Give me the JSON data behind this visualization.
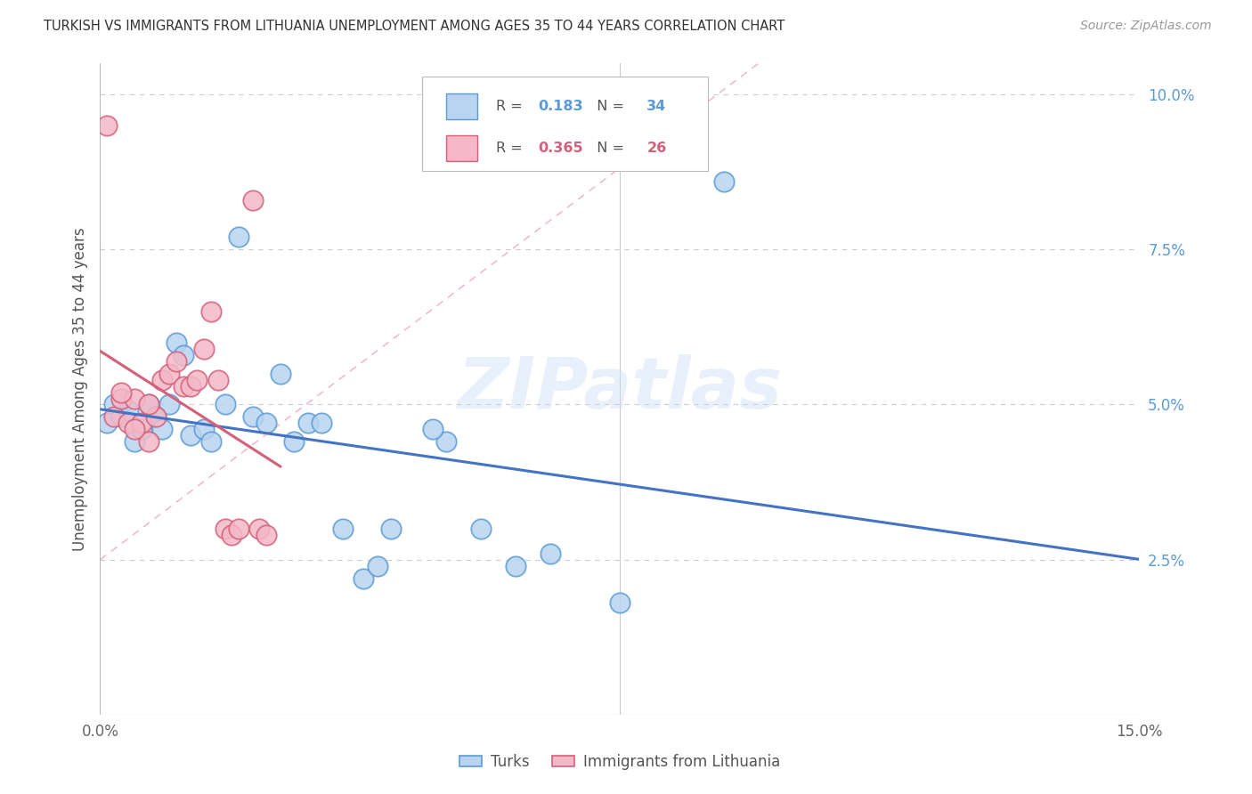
{
  "title": "TURKISH VS IMMIGRANTS FROM LITHUANIA UNEMPLOYMENT AMONG AGES 35 TO 44 YEARS CORRELATION CHART",
  "source": "Source: ZipAtlas.com",
  "ylabel": "Unemployment Among Ages 35 to 44 years",
  "xlim": [
    0.0,
    0.15
  ],
  "ylim": [
    0.0,
    0.105
  ],
  "turks_color": "#b8d4f0",
  "turks_edge_color": "#5b9bd5",
  "turks_line_color": "#4472c4",
  "lithuania_color": "#f4b8c8",
  "lithuania_edge_color": "#d4607a",
  "lithuania_line_color": "#d4607a",
  "diag_color": "#f0a0b8",
  "turks_R": "0.183",
  "turks_N": "34",
  "lithuania_R": "0.365",
  "lithuania_N": "26",
  "r_color_turks": "#5b9bd5",
  "r_color_lith": "#d4607a",
  "watermark": "ZIPatlas",
  "turks_x": [
    0.001,
    0.002,
    0.003,
    0.004,
    0.005,
    0.006,
    0.007,
    0.008,
    0.009,
    0.01,
    0.011,
    0.012,
    0.013,
    0.015,
    0.016,
    0.018,
    0.02,
    0.022,
    0.024,
    0.026,
    0.028,
    0.03,
    0.032,
    0.035,
    0.038,
    0.04,
    0.042,
    0.05,
    0.055,
    0.06,
    0.075,
    0.09,
    0.048,
    0.065
  ],
  "turks_y": [
    0.047,
    0.05,
    0.048,
    0.049,
    0.044,
    0.046,
    0.05,
    0.048,
    0.046,
    0.05,
    0.06,
    0.058,
    0.045,
    0.046,
    0.044,
    0.05,
    0.077,
    0.048,
    0.047,
    0.055,
    0.044,
    0.047,
    0.047,
    0.03,
    0.022,
    0.024,
    0.03,
    0.044,
    0.03,
    0.024,
    0.018,
    0.086,
    0.046,
    0.026
  ],
  "lithuania_x": [
    0.001,
    0.002,
    0.003,
    0.004,
    0.005,
    0.006,
    0.007,
    0.008,
    0.009,
    0.01,
    0.011,
    0.012,
    0.013,
    0.014,
    0.015,
    0.016,
    0.017,
    0.018,
    0.019,
    0.02,
    0.022,
    0.023,
    0.024,
    0.003,
    0.005,
    0.007
  ],
  "lithuania_y": [
    0.095,
    0.048,
    0.051,
    0.047,
    0.051,
    0.047,
    0.044,
    0.048,
    0.054,
    0.055,
    0.057,
    0.053,
    0.053,
    0.054,
    0.059,
    0.065,
    0.054,
    0.03,
    0.029,
    0.03,
    0.083,
    0.03,
    0.029,
    0.052,
    0.046,
    0.05
  ]
}
